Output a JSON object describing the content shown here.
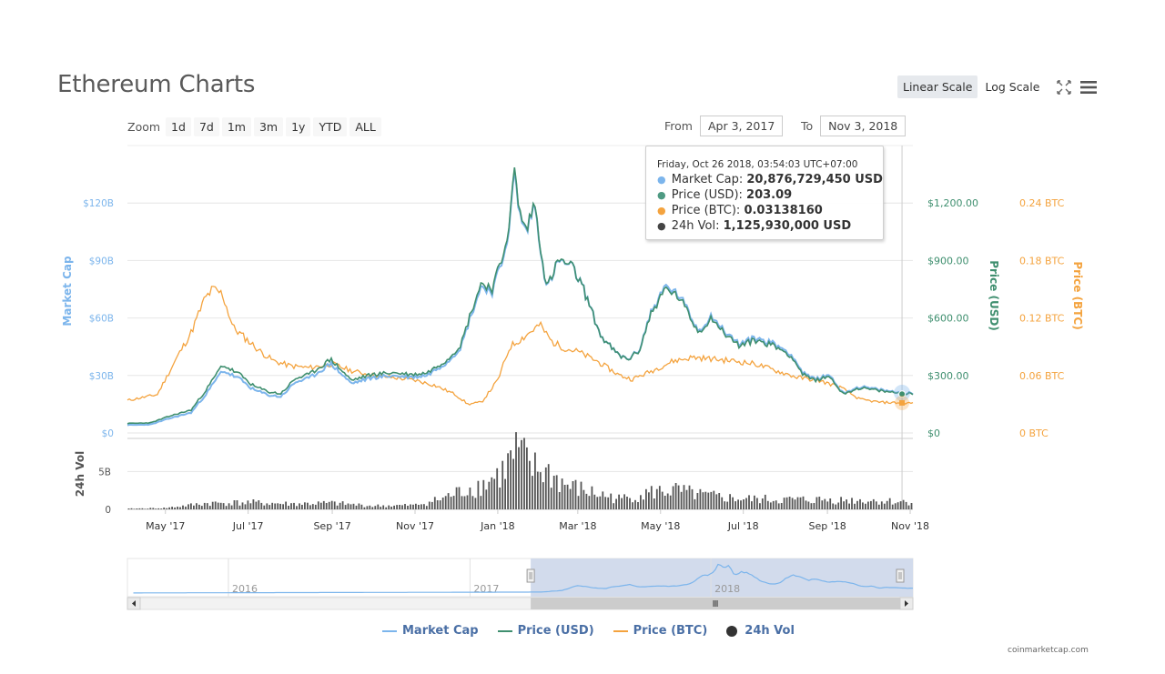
{
  "title": "Ethereum Charts",
  "scale_buttons": {
    "linear": "Linear Scale",
    "log": "Log Scale"
  },
  "zoom": {
    "label": "Zoom",
    "buttons": [
      "1d",
      "7d",
      "1m",
      "3m",
      "1y",
      "YTD",
      "ALL"
    ]
  },
  "range": {
    "from_label": "From",
    "from_value": "Apr 3, 2017",
    "to_label": "To",
    "to_value": "Nov 3, 2018"
  },
  "tooltip": {
    "date": "Friday, Oct 26 2018, 03:54:03 UTC+07:00",
    "rows": [
      {
        "label": "Market Cap:",
        "value": "20,876,729,450 USD",
        "color": "#7cb5ec"
      },
      {
        "label": "Price (USD):",
        "value": "203.09",
        "color": "#4e9a82"
      },
      {
        "label": "Price (BTC):",
        "value": "0.03138160",
        "color": "#f4a33e"
      },
      {
        "label": "24h Vol:",
        "value": "1,125,930,000 USD",
        "color": "#444444"
      }
    ]
  },
  "legend": [
    {
      "name": "Market Cap",
      "color": "#7cb5ec",
      "kind": "line"
    },
    {
      "name": "Price (USD)",
      "color": "#3f8f6f",
      "kind": "line"
    },
    {
      "name": "Price (BTC)",
      "color": "#f4a33e",
      "kind": "line"
    },
    {
      "name": "24h Vol",
      "color": "#333333",
      "kind": "dot"
    }
  ],
  "credit": "coinmarketcap.com",
  "colors": {
    "market_cap": "#7cb5ec",
    "price_usd": "#3f8f6f",
    "price_btc": "#f4a33e",
    "volume": "#555555",
    "navigator_fill": "#cdd7ea"
  },
  "chart_data": {
    "type": "line",
    "x_range": [
      "2017-04-03",
      "2018-11-03"
    ],
    "x_ticks": [
      "May '17",
      "Jul '17",
      "Sep '17",
      "Nov '17",
      "Jan '18",
      "Mar '18",
      "May '18",
      "Jul '18",
      "Sep '18",
      "Nov '18"
    ],
    "y_axes": {
      "market_cap": {
        "label": "Market Cap",
        "ticks": [
          "$0",
          "$30B",
          "$60B",
          "$90B",
          "$120B"
        ],
        "range": [
          0,
          150
        ]
      },
      "price_usd": {
        "label": "Price (USD)",
        "ticks": [
          "$0",
          "$300.00",
          "$600.00",
          "$900.00",
          "$1,200.00"
        ],
        "range": [
          0,
          1500
        ]
      },
      "price_btc": {
        "label": "Price (BTC)",
        "ticks": [
          "0 BTC",
          "0.06 BTC",
          "0.12 BTC",
          "0.18 BTC",
          "0.24 BTC"
        ],
        "range": [
          0,
          0.3
        ]
      },
      "volume": {
        "label": "24h Vol",
        "ticks": [
          "0",
          "5B"
        ],
        "range": [
          0,
          9
        ]
      }
    },
    "series": [
      {
        "name": "Price (USD)",
        "x": [
          "2017-04-03",
          "2017-04-20",
          "2017-05-05",
          "2017-05-20",
          "2017-06-01",
          "2017-06-12",
          "2017-06-25",
          "2017-07-05",
          "2017-07-16",
          "2017-07-25",
          "2017-08-05",
          "2017-08-15",
          "2017-08-31",
          "2017-09-15",
          "2017-09-30",
          "2017-10-15",
          "2017-10-31",
          "2017-11-10",
          "2017-11-25",
          "2017-12-05",
          "2017-12-12",
          "2017-12-20",
          "2017-12-28",
          "2018-01-04",
          "2018-01-10",
          "2018-01-13",
          "2018-01-17",
          "2018-01-22",
          "2018-01-28",
          "2018-02-06",
          "2018-02-15",
          "2018-02-25",
          "2018-03-05",
          "2018-03-18",
          "2018-03-31",
          "2018-04-07",
          "2018-04-15",
          "2018-04-24",
          "2018-05-05",
          "2018-05-15",
          "2018-05-29",
          "2018-06-08",
          "2018-06-15",
          "2018-06-28",
          "2018-07-10",
          "2018-07-24",
          "2018-08-05",
          "2018-08-14",
          "2018-08-22",
          "2018-09-03",
          "2018-09-12",
          "2018-09-25",
          "2018-10-05",
          "2018-10-15",
          "2018-10-26",
          "2018-11-03"
        ],
        "values": [
          45,
          48,
          85,
          115,
          230,
          350,
          300,
          240,
          210,
          200,
          280,
          300,
          380,
          270,
          300,
          310,
          300,
          310,
          380,
          460,
          620,
          780,
          750,
          900,
          1100,
          1380,
          1150,
          1050,
          1200,
          750,
          900,
          860,
          750,
          500,
          400,
          380,
          420,
          620,
          750,
          700,
          520,
          600,
          530,
          450,
          480,
          450,
          400,
          300,
          270,
          290,
          200,
          230,
          220,
          210,
          203,
          200
        ]
      },
      {
        "name": "Market Cap",
        "x": [
          "2017-04-03",
          "2017-04-20",
          "2017-05-05",
          "2017-05-20",
          "2017-06-01",
          "2017-06-12",
          "2017-06-25",
          "2017-07-05",
          "2017-07-16",
          "2017-07-25",
          "2017-08-05",
          "2017-08-15",
          "2017-08-31",
          "2017-09-15",
          "2017-09-30",
          "2017-10-15",
          "2017-10-31",
          "2017-11-10",
          "2017-11-25",
          "2017-12-05",
          "2017-12-12",
          "2017-12-20",
          "2017-12-28",
          "2018-01-04",
          "2018-01-10",
          "2018-01-13",
          "2018-01-17",
          "2018-01-22",
          "2018-01-28",
          "2018-02-06",
          "2018-02-15",
          "2018-02-25",
          "2018-03-05",
          "2018-03-18",
          "2018-03-31",
          "2018-04-07",
          "2018-04-15",
          "2018-04-24",
          "2018-05-05",
          "2018-05-15",
          "2018-05-29",
          "2018-06-08",
          "2018-06-15",
          "2018-06-28",
          "2018-07-10",
          "2018-07-24",
          "2018-08-05",
          "2018-08-14",
          "2018-08-22",
          "2018-09-03",
          "2018-09-12",
          "2018-09-25",
          "2018-10-05",
          "2018-10-15",
          "2018-10-26",
          "2018-11-03"
        ],
        "values": [
          4.1,
          4.4,
          7.8,
          10.6,
          21.3,
          32.6,
          28.1,
          22.5,
          19.8,
          18.9,
          26.6,
          28.5,
          36.2,
          25.8,
          28.8,
          29.9,
          29.1,
          30.2,
          37.2,
          45.1,
          60.9,
          76.8,
          74.0,
          88.9,
          108.9,
          136.9,
          114.3,
          104.6,
          119.8,
          75.0,
          90.1,
          86.4,
          75.6,
          50.5,
          40.5,
          38.6,
          42.7,
          63.2,
          76.7,
          71.6,
          53.3,
          61.6,
          54.5,
          46.4,
          49.6,
          46.5,
          41.5,
          31.2,
          28.1,
          30.2,
          20.9,
          24.1,
          23.0,
          21.9,
          20.9,
          20.7
        ]
      },
      {
        "name": "Price (BTC)",
        "x": [
          "2017-04-03",
          "2017-04-25",
          "2017-05-10",
          "2017-05-20",
          "2017-05-30",
          "2017-06-05",
          "2017-06-12",
          "2017-06-20",
          "2017-06-28",
          "2017-07-10",
          "2017-07-20",
          "2017-08-01",
          "2017-08-15",
          "2017-09-01",
          "2017-09-15",
          "2017-10-01",
          "2017-10-15",
          "2017-11-01",
          "2017-11-15",
          "2017-12-01",
          "2017-12-10",
          "2017-12-20",
          "2018-01-01",
          "2018-01-10",
          "2018-01-20",
          "2018-02-01",
          "2018-02-10",
          "2018-02-20",
          "2018-03-01",
          "2018-03-15",
          "2018-04-01",
          "2018-04-10",
          "2018-04-25",
          "2018-05-10",
          "2018-05-25",
          "2018-06-10",
          "2018-06-25",
          "2018-07-10",
          "2018-07-25",
          "2018-08-10",
          "2018-08-25",
          "2018-09-10",
          "2018-09-25",
          "2018-10-10",
          "2018-10-26",
          "2018-11-03"
        ],
        "values": [
          0.034,
          0.04,
          0.08,
          0.105,
          0.14,
          0.15,
          0.145,
          0.11,
          0.1,
          0.085,
          0.075,
          0.07,
          0.068,
          0.072,
          0.065,
          0.06,
          0.058,
          0.055,
          0.05,
          0.04,
          0.03,
          0.032,
          0.055,
          0.09,
          0.1,
          0.113,
          0.095,
          0.088,
          0.085,
          0.075,
          0.06,
          0.056,
          0.065,
          0.075,
          0.079,
          0.077,
          0.075,
          0.072,
          0.065,
          0.058,
          0.055,
          0.048,
          0.035,
          0.032,
          0.0314,
          0.031
        ]
      },
      {
        "name": "24h Vol",
        "x": [
          "2017-04-03",
          "2017-05-01",
          "2017-06-01",
          "2017-07-01",
          "2017-08-01",
          "2017-09-01",
          "2017-10-01",
          "2017-11-01",
          "2017-11-20",
          "2017-12-10",
          "2017-12-20",
          "2018-01-05",
          "2018-01-10",
          "2018-01-16",
          "2018-01-25",
          "2018-02-06",
          "2018-02-20",
          "2018-03-10",
          "2018-04-01",
          "2018-04-25",
          "2018-05-10",
          "2018-06-01",
          "2018-07-01",
          "2018-08-01",
          "2018-09-01",
          "2018-10-01",
          "2018-10-26",
          "2018-11-03"
        ],
        "values": [
          0.1,
          0.2,
          0.9,
          1.0,
          0.8,
          0.9,
          0.5,
          0.6,
          1.5,
          3.0,
          3.5,
          5.5,
          7.0,
          8.5,
          6.0,
          5.5,
          3.5,
          2.5,
          1.5,
          2.5,
          2.8,
          2.0,
          1.5,
          1.4,
          1.4,
          1.3,
          1.1,
          1.2
        ]
      }
    ],
    "navigator": {
      "labels": [
        "2016",
        "2017",
        "2018"
      ],
      "selection": [
        "2017-04-03",
        "2018-11-03"
      ]
    },
    "hover_date": "2018-10-26"
  }
}
